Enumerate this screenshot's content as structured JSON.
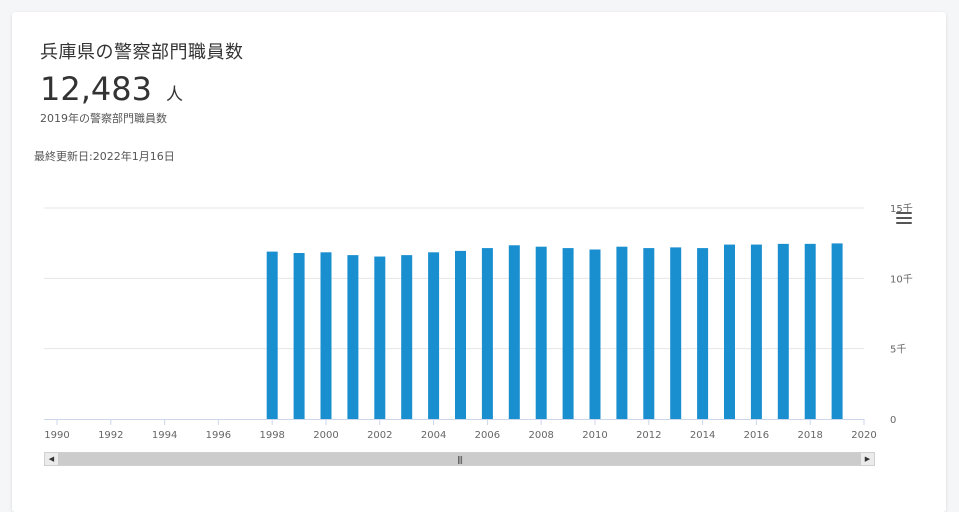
{
  "header": {
    "title": "兵庫県の警察部門職員数",
    "value": "12,483",
    "unit": "人",
    "caption": "2019年の警察部門職員数",
    "updated": "最終更新日:2022年1月16日"
  },
  "colors": {
    "bar": "#1a8fd0",
    "grid": "#e6e6e6",
    "axis": "#ccd6eb",
    "tick_label": "#666666"
  },
  "icons": {
    "menu": "hamburger-menu-icon",
    "scroll_left": "arrow-left-icon",
    "scroll_right": "arrow-right-icon",
    "scroll_grip": "grip-icon"
  },
  "chart_data": {
    "type": "bar",
    "title": "",
    "xlabel": "",
    "ylabel": "",
    "xlim": [
      1990,
      2020
    ],
    "ylim": [
      0,
      15000
    ],
    "grid": true,
    "y_ticks": [
      0,
      5000,
      10000,
      15000
    ],
    "y_tick_labels": [
      "0",
      "5千",
      "10千",
      "15千"
    ],
    "x_ticks": [
      1990,
      1992,
      1994,
      1996,
      1998,
      2000,
      2002,
      2004,
      2006,
      2008,
      2010,
      2012,
      2014,
      2016,
      2018,
      2020
    ],
    "x_tick_labels": [
      "1990",
      "1992",
      "1994",
      "1996",
      "1998",
      "2000",
      "2002",
      "2004",
      "2006",
      "2008",
      "2010",
      "2012",
      "2014",
      "2016",
      "2018",
      "2020"
    ],
    "x": [
      1998,
      1999,
      2000,
      2001,
      2002,
      2003,
      2004,
      2005,
      2006,
      2007,
      2008,
      2009,
      2010,
      2011,
      2012,
      2013,
      2014,
      2015,
      2016,
      2017,
      2018,
      2019
    ],
    "values": [
      11900,
      11800,
      11850,
      11650,
      11550,
      11650,
      11850,
      11950,
      12150,
      12350,
      12250,
      12150,
      12050,
      12250,
      12150,
      12200,
      12150,
      12400,
      12400,
      12450,
      12450,
      12483
    ]
  }
}
